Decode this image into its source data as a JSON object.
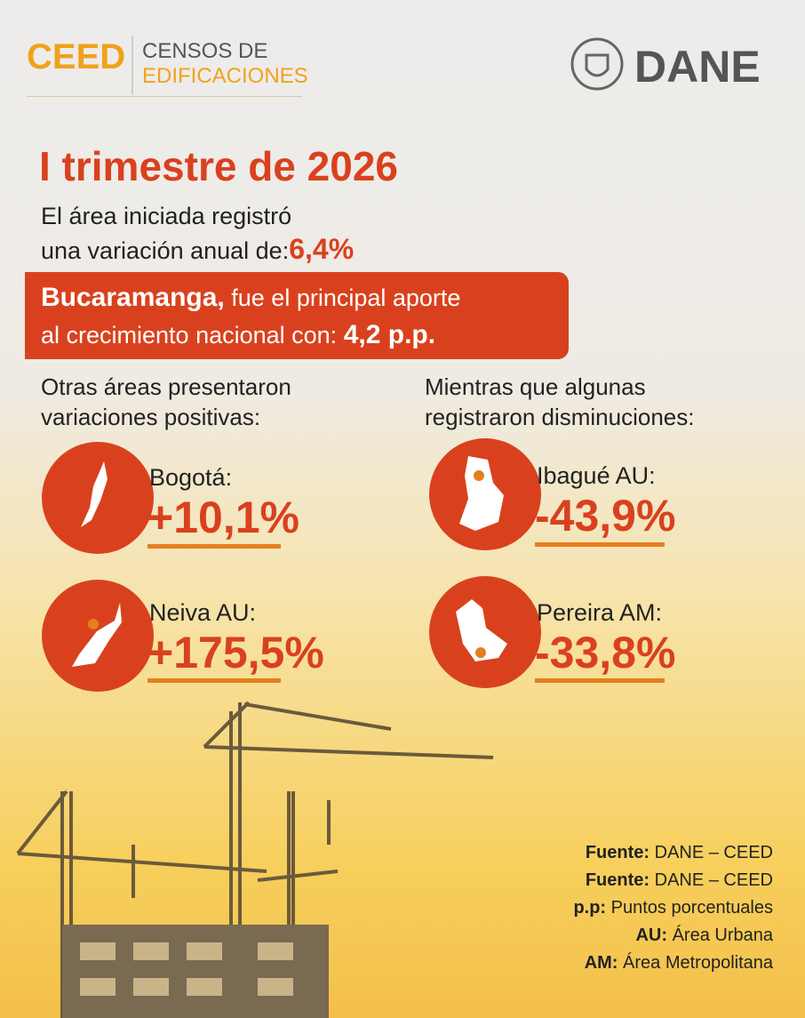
{
  "header": {
    "logo": "CEED",
    "subtitle_line1": "CENSOS DE",
    "subtitle_line2": "EDIFICACIONES",
    "brand": "DANE"
  },
  "title": "I trimestre de 2026",
  "intro": {
    "line1": "El área iniciada registró",
    "line2": "una variación anual de:",
    "value": "6,4%"
  },
  "highlight": {
    "city": "Bucaramanga,",
    "text1": "fue el principal aporte",
    "text2": "al crecimiento nacional con:",
    "value": "4,2 p.p."
  },
  "positive": {
    "heading1": "Otras áreas presentaron",
    "heading2": "variaciones positivas:",
    "items": [
      {
        "name": "Bogotá:",
        "value": "+10,1%"
      },
      {
        "name": "Neiva AU:",
        "value": "+175,5%"
      }
    ]
  },
  "negative": {
    "heading1": "Mientras que algunas",
    "heading2": "registraron disminuciones:",
    "items": [
      {
        "name": "Ibagué AU:",
        "value": "-43,9%"
      },
      {
        "name": "Pereira AM:",
        "value": "-33,8%"
      }
    ]
  },
  "notes": [
    {
      "label": "Fuente:",
      "text": "DANE – CEED"
    },
    {
      "label": "Fuente:",
      "text": "DANE – CEED"
    },
    {
      "label": "p.p:",
      "text": "Puntos porcentuales"
    },
    {
      "label": "AU:",
      "text": "Área Urbana"
    },
    {
      "label": "AM:",
      "text": "Área Metropolitana"
    }
  ]
}
